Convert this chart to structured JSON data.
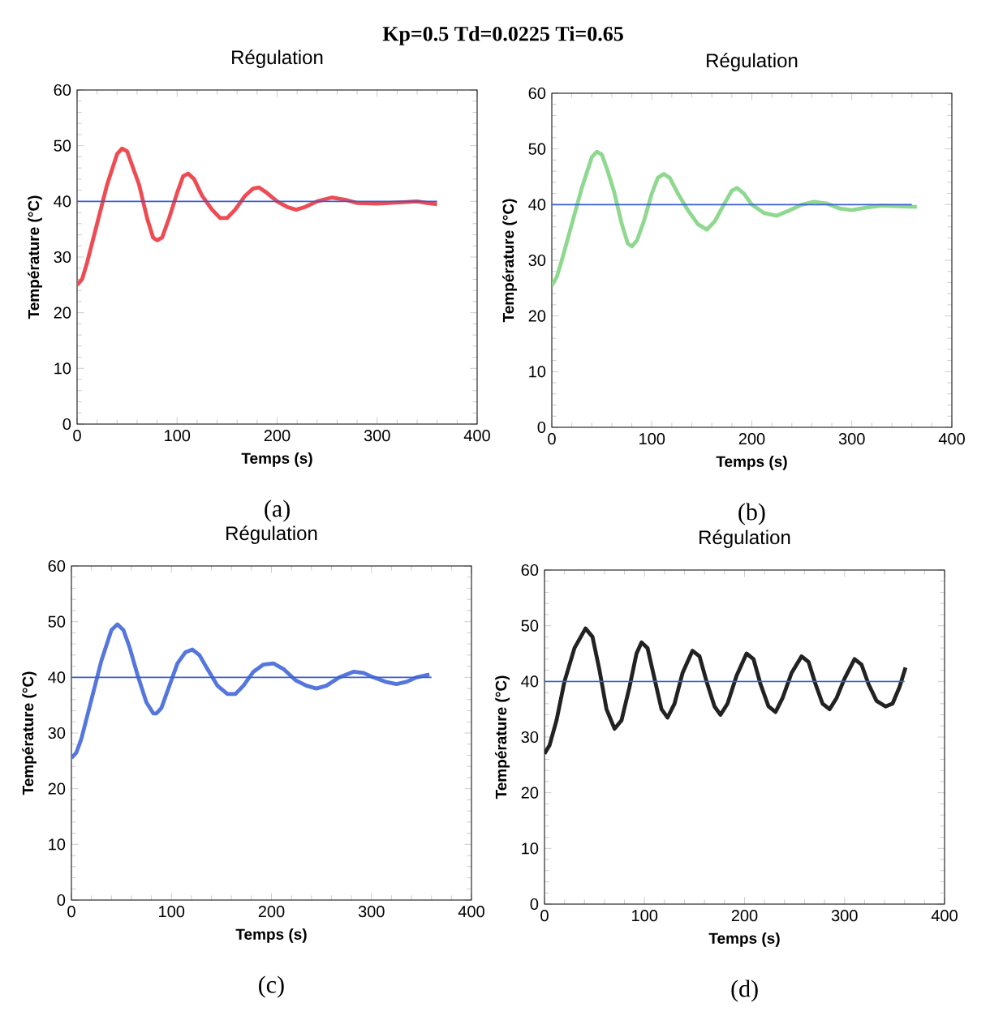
{
  "chart_data": [
    {
      "type": "line",
      "title": "Régulation",
      "xlabel": "Temps (s)",
      "ylabel": "Température (°C)",
      "xlim": [
        0,
        400
      ],
      "ylim": [
        0,
        60
      ],
      "xticks": [
        0,
        100,
        200,
        300,
        400
      ],
      "yticks": [
        0,
        10,
        20,
        30,
        40,
        50,
        60
      ],
      "annotations": [
        "Kp=0.5  Td=0.0225  Ti=0.65",
        "(a)"
      ],
      "series": [
        {
          "color": "#ee4b52",
          "x": [
            0,
            5,
            10,
            20,
            30,
            40,
            45,
            50,
            55,
            62,
            70,
            76,
            80,
            85,
            92,
            100,
            106,
            111,
            117,
            125,
            135,
            143,
            150,
            158,
            168,
            176,
            182,
            190,
            200,
            210,
            219,
            228,
            240,
            255,
            268,
            280,
            300,
            320,
            340,
            350,
            360
          ],
          "values": [
            25,
            26,
            29,
            36,
            43,
            48.5,
            49.5,
            49,
            46.5,
            43,
            37,
            33.5,
            33,
            33.5,
            37,
            41.5,
            44.5,
            45,
            44,
            41,
            38.5,
            37,
            37,
            38.5,
            41,
            42.3,
            42.5,
            41.5,
            40,
            39,
            38.5,
            39,
            40,
            40.7,
            40.3,
            39.7,
            39.6,
            39.8,
            40,
            39.7,
            39.5
          ]
        },
        {
          "color": "#3a5fcd",
          "x": [
            0,
            360
          ],
          "values": [
            40,
            40
          ]
        }
      ]
    },
    {
      "type": "line",
      "title": "Régulation",
      "xlabel": "Temps (s)",
      "ylabel": "Température (°C)",
      "xlim": [
        0,
        400
      ],
      "ylim": [
        0,
        60
      ],
      "xticks": [
        0,
        100,
        200,
        300,
        400
      ],
      "yticks": [
        0,
        10,
        20,
        30,
        40,
        50,
        60
      ],
      "annotations": [
        "(b)"
      ],
      "series": [
        {
          "color": "#8fd88f",
          "x": [
            0,
            5,
            10,
            20,
            30,
            40,
            45,
            50,
            55,
            62,
            70,
            76,
            80,
            85,
            92,
            100,
            106,
            112,
            118,
            126,
            136,
            146,
            155,
            163,
            172,
            180,
            185,
            192,
            200,
            212,
            225,
            238,
            250,
            262,
            275,
            288,
            300,
            315,
            330,
            345,
            365
          ],
          "values": [
            25.5,
            27,
            30,
            36.5,
            43,
            48.5,
            49.5,
            49,
            46.5,
            42.5,
            36.5,
            33,
            32.5,
            33.5,
            37,
            42,
            44.8,
            45.5,
            44.8,
            42,
            39,
            36.5,
            35.5,
            37,
            40,
            42.5,
            43,
            42,
            40,
            38.5,
            38,
            39,
            40,
            40.5,
            40.2,
            39.3,
            39,
            39.5,
            39.8,
            39.7,
            39.6
          ]
        },
        {
          "color": "#3a5fcd",
          "x": [
            0,
            360
          ],
          "values": [
            40,
            40
          ]
        }
      ]
    },
    {
      "type": "line",
      "title": "Régulation",
      "xlabel": "Temps (s)",
      "ylabel": "Température (°C)",
      "xlim": [
        0,
        400
      ],
      "ylim": [
        0,
        60
      ],
      "xticks": [
        0,
        100,
        200,
        300,
        400
      ],
      "yticks": [
        0,
        10,
        20,
        30,
        40,
        50,
        60
      ],
      "annotations": [
        "(c)"
      ],
      "series": [
        {
          "color": "#5577dd",
          "x": [
            0,
            5,
            10,
            20,
            30,
            40,
            46,
            52,
            58,
            66,
            75,
            82,
            85,
            90,
            98,
            106,
            114,
            121,
            128,
            136,
            146,
            156,
            164,
            172,
            182,
            192,
            202,
            212,
            224,
            235,
            245,
            255,
            268,
            282,
            292,
            302,
            314,
            325,
            335,
            345,
            358
          ],
          "values": [
            25.5,
            26.5,
            29,
            36,
            43,
            48.5,
            49.5,
            48.5,
            45.5,
            40.5,
            35.5,
            33.5,
            33.5,
            34.5,
            38.5,
            42.5,
            44.5,
            45,
            44,
            41.5,
            38.5,
            37,
            37,
            38.5,
            41,
            42.3,
            42.5,
            41.5,
            39.5,
            38.5,
            38,
            38.5,
            40,
            41,
            40.8,
            40,
            39.2,
            38.8,
            39.2,
            40,
            40.5
          ]
        },
        {
          "color": "#3a5fcd",
          "x": [
            0,
            360
          ],
          "values": [
            40,
            40
          ]
        }
      ]
    },
    {
      "type": "line",
      "title": "Régulation",
      "xlabel": "Temps (s)",
      "ylabel": "Température (°C)",
      "xlim": [
        0,
        400
      ],
      "ylim": [
        0,
        60
      ],
      "xticks": [
        0,
        100,
        200,
        300,
        400
      ],
      "yticks": [
        0,
        10,
        20,
        30,
        40,
        50,
        60
      ],
      "annotations": [
        "(d)"
      ],
      "series": [
        {
          "color": "#222222",
          "x": [
            0,
            5,
            12,
            20,
            30,
            41,
            48,
            55,
            62,
            70,
            77,
            85,
            92,
            97,
            103,
            110,
            117,
            123,
            130,
            138,
            148,
            155,
            162,
            170,
            176,
            183,
            192,
            202,
            209,
            216,
            224,
            231,
            238,
            247,
            257,
            264,
            271,
            278,
            285,
            292,
            300,
            310,
            317,
            324,
            332,
            341,
            348,
            355,
            361
          ],
          "values": [
            27,
            28.5,
            33,
            40,
            46,
            49.5,
            48,
            42,
            35,
            31.5,
            33,
            39,
            45,
            47,
            46,
            40.5,
            35,
            33.5,
            36,
            41.5,
            45.5,
            44.5,
            40,
            35.5,
            34,
            36,
            41,
            45,
            44,
            39.5,
            35.5,
            34.5,
            37,
            41.5,
            44.5,
            43.5,
            39.5,
            36,
            35,
            37,
            40.5,
            44,
            43,
            39.5,
            36.5,
            35.5,
            36,
            39,
            42.5
          ]
        },
        {
          "color": "#3a5fcd",
          "x": [
            0,
            360
          ],
          "values": [
            40,
            40
          ]
        }
      ]
    }
  ]
}
